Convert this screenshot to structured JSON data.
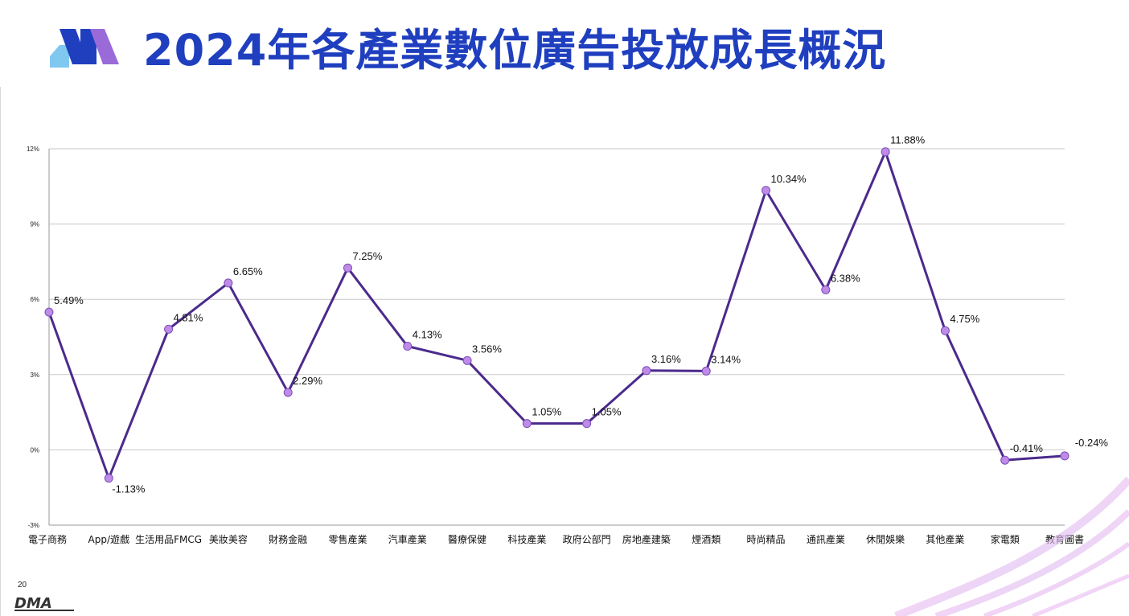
{
  "header": {
    "title": "2024年各產業數位廣告投放成長概況"
  },
  "footer": {
    "page_number": "20",
    "logo_text": "DMA"
  },
  "colors": {
    "title": "#1f3fbf",
    "line": "#4b2a8c",
    "marker": "#c08ae8",
    "logo_blue": "#1f3fbf",
    "logo_purple": "#9b6ad9",
    "logo_cyan": "#7fc8f0"
  },
  "chart_data": {
    "type": "line",
    "categories": [
      "電子商務",
      "App/遊戲",
      "生活用品FMCG",
      "美妝美容",
      "財務金融",
      "零售產業",
      "汽車產業",
      "醫療保健",
      "科技產業",
      "政府公部門",
      "房地產建築",
      "煙酒類",
      "時尚精品",
      "通訊產業",
      "休閒娛樂",
      "其他產業",
      "家電類",
      "教育圖書"
    ],
    "values": [
      5.49,
      -1.13,
      4.81,
      6.65,
      2.29,
      7.25,
      4.13,
      3.56,
      1.05,
      1.05,
      3.16,
      3.14,
      10.34,
      6.38,
      11.88,
      4.75,
      -0.41,
      -0.24
    ],
    "data_labels": [
      "5.49%",
      "-1.13%",
      "4.81%",
      "6.65%",
      "2.29%",
      "7.25%",
      "4.13%",
      "3.56%",
      "1.05%",
      "1.05%",
      "3.16%",
      "3.14%",
      "10.34%",
      "6.38%",
      "11.88%",
      "4.75%",
      "-0.41%",
      "-0.24%"
    ],
    "y_ticks": [
      -3,
      0,
      3,
      6,
      9,
      12
    ],
    "y_tick_labels": [
      "-3%",
      "0%",
      "3%",
      "6%",
      "9%",
      "12%"
    ],
    "ylim": [
      -3,
      12
    ],
    "grid": true,
    "legend": "none"
  }
}
